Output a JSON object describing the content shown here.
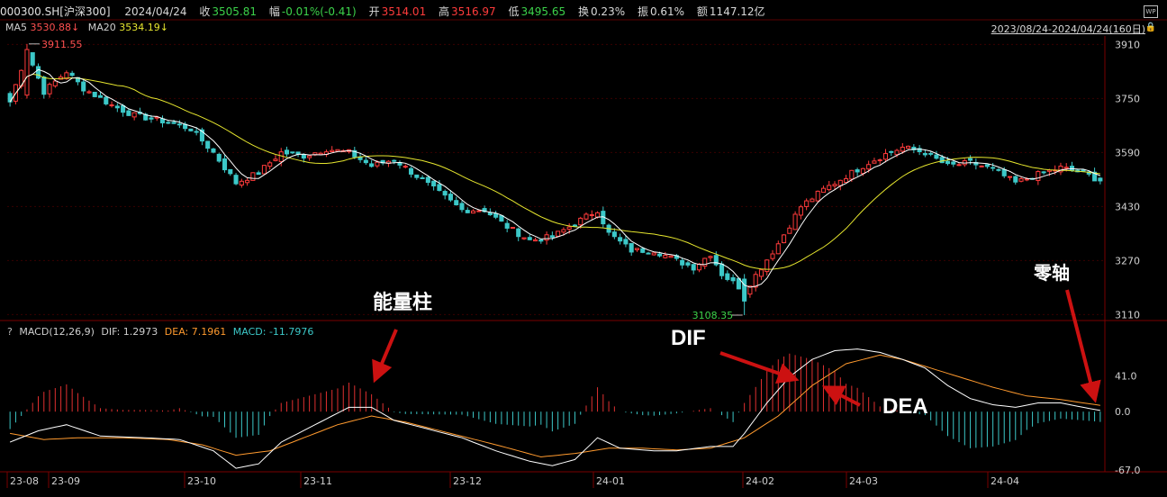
{
  "header": {
    "code": "000300.SH[沪深300]",
    "date": "2024/04/24",
    "close_label": "收",
    "close_value": "3505.81",
    "change_label": "幅",
    "change_value": "-0.01%(-0.41)",
    "open_label": "开",
    "open_value": "3514.01",
    "high_label": "高",
    "high_value": "3516.97",
    "low_label": "低",
    "low_value": "3495.65",
    "turnover_label": "换",
    "turnover_value": "0.23%",
    "amplitude_label": "振",
    "amplitude_value": "0.61%",
    "amount_label": "额",
    "amount_value": "1147.12亿",
    "range_text": "2023/08/24-2024/04/24(160日)",
    "lock_icon": "lock-icon",
    "export_icon": "wp-export-icon"
  },
  "colors": {
    "background": "#000000",
    "up": "#ff3b3b",
    "down": "#3cc8c8",
    "ma5": "#ffffff",
    "ma20": "#e6e62e",
    "dif": "#ffffff",
    "dea": "#ff9a2e",
    "annotation_arrow": "#cc1111",
    "grid": "#3a0000"
  },
  "chart_data": [
    {
      "type": "candlestick",
      "title": "",
      "indicators_text": {
        "ma5_label": "MA5",
        "ma5_value": "3530.88",
        "ma20_label": "MA20",
        "ma20_value": "3534.19"
      },
      "y_ticks": [
        "3910",
        "3750",
        "3590",
        "3430",
        "3270",
        "3110"
      ],
      "ylim": [
        3095,
        3935
      ],
      "high_marker": "3911.55",
      "low_marker": "3108.35",
      "x_ticks": [
        "23-08",
        "23-09",
        "23-10",
        "23-11",
        "23-12",
        "24-01",
        "24-02",
        "24-03",
        "24-04"
      ],
      "close_anchors": [
        [
          0,
          3740
        ],
        [
          3,
          3890
        ],
        [
          6,
          3770
        ],
        [
          10,
          3830
        ],
        [
          13,
          3780
        ],
        [
          18,
          3730
        ],
        [
          22,
          3700
        ],
        [
          28,
          3680
        ],
        [
          32,
          3660
        ],
        [
          36,
          3590
        ],
        [
          40,
          3500
        ],
        [
          44,
          3530
        ],
        [
          48,
          3590
        ],
        [
          52,
          3580
        ],
        [
          56,
          3600
        ],
        [
          60,
          3590
        ],
        [
          64,
          3550
        ],
        [
          68,
          3570
        ],
        [
          72,
          3520
        ],
        [
          76,
          3470
        ],
        [
          80,
          3420
        ],
        [
          84,
          3420
        ],
        [
          88,
          3370
        ],
        [
          92,
          3330
        ],
        [
          96,
          3340
        ],
        [
          100,
          3380
        ],
        [
          104,
          3420
        ],
        [
          106,
          3350
        ],
        [
          110,
          3300
        ],
        [
          114,
          3300
        ],
        [
          118,
          3270
        ],
        [
          121,
          3250
        ],
        [
          124,
          3290
        ],
        [
          126,
          3230
        ],
        [
          130,
          3180
        ],
        [
          133,
          3250
        ],
        [
          136,
          3320
        ],
        [
          140,
          3430
        ],
        [
          144,
          3480
        ],
        [
          148,
          3520
        ],
        [
          152,
          3560
        ],
        [
          155,
          3585
        ],
        [
          158,
          3605
        ],
        [
          162,
          3590
        ],
        [
          166,
          3550
        ],
        [
          170,
          3560
        ],
        [
          174,
          3540
        ],
        [
          178,
          3500
        ],
        [
          182,
          3525
        ],
        [
          186,
          3545
        ],
        [
          190,
          3530
        ],
        [
          193,
          3506
        ]
      ]
    },
    {
      "type": "macd",
      "label": "MACD(12,26,9)",
      "dif_label": "DIF:",
      "dif_value": "1.2973",
      "dea_label": "DEA:",
      "dea_value": "7.1961",
      "macd_label": "MACD:",
      "macd_value": "-11.7976",
      "y_ticks": [
        "41.0",
        "0.0",
        "-67.0"
      ],
      "ylim": [
        -67,
        85
      ],
      "x_ticks": [
        "23-08",
        "23-09",
        "23-10",
        "23-11",
        "23-12",
        "24-01",
        "24-02",
        "24-03",
        "24-04"
      ],
      "dif_anchors": [
        [
          0,
          -35
        ],
        [
          5,
          -22
        ],
        [
          10,
          -15
        ],
        [
          16,
          -28
        ],
        [
          24,
          -30
        ],
        [
          30,
          -32
        ],
        [
          36,
          -45
        ],
        [
          40,
          -65
        ],
        [
          44,
          -60
        ],
        [
          48,
          -35
        ],
        [
          54,
          -15
        ],
        [
          60,
          5
        ],
        [
          64,
          5
        ],
        [
          68,
          -10
        ],
        [
          74,
          -20
        ],
        [
          80,
          -30
        ],
        [
          86,
          -45
        ],
        [
          92,
          -57
        ],
        [
          96,
          -62
        ],
        [
          100,
          -55
        ],
        [
          104,
          -30
        ],
        [
          108,
          -42
        ],
        [
          114,
          -45
        ],
        [
          118,
          -45
        ],
        [
          124,
          -40
        ],
        [
          128,
          -40
        ],
        [
          130,
          -25
        ],
        [
          134,
          10
        ],
        [
          138,
          40
        ],
        [
          142,
          60
        ],
        [
          146,
          70
        ],
        [
          150,
          72
        ],
        [
          154,
          68
        ],
        [
          158,
          60
        ],
        [
          162,
          50
        ],
        [
          166,
          30
        ],
        [
          170,
          15
        ],
        [
          174,
          8
        ],
        [
          178,
          5
        ],
        [
          182,
          10
        ],
        [
          186,
          10
        ],
        [
          190,
          5
        ],
        [
          193,
          1.3
        ]
      ],
      "dea_anchors": [
        [
          0,
          -25
        ],
        [
          6,
          -32
        ],
        [
          12,
          -30
        ],
        [
          20,
          -30
        ],
        [
          28,
          -32
        ],
        [
          34,
          -38
        ],
        [
          40,
          -50
        ],
        [
          46,
          -45
        ],
        [
          52,
          -30
        ],
        [
          58,
          -15
        ],
        [
          64,
          -5
        ],
        [
          70,
          -12
        ],
        [
          78,
          -25
        ],
        [
          86,
          -38
        ],
        [
          94,
          -52
        ],
        [
          100,
          -48
        ],
        [
          106,
          -42
        ],
        [
          112,
          -42
        ],
        [
          118,
          -44
        ],
        [
          124,
          -42
        ],
        [
          130,
          -30
        ],
        [
          136,
          -5
        ],
        [
          142,
          30
        ],
        [
          148,
          55
        ],
        [
          154,
          65
        ],
        [
          158,
          60
        ],
        [
          162,
          52
        ],
        [
          168,
          40
        ],
        [
          174,
          28
        ],
        [
          180,
          18
        ],
        [
          186,
          14
        ],
        [
          190,
          10
        ],
        [
          193,
          7.2
        ]
      ]
    }
  ],
  "annotations": {
    "energy_bar": "能量柱",
    "dif": "DIF",
    "dea": "DEA",
    "zero_axis": "零轴"
  }
}
